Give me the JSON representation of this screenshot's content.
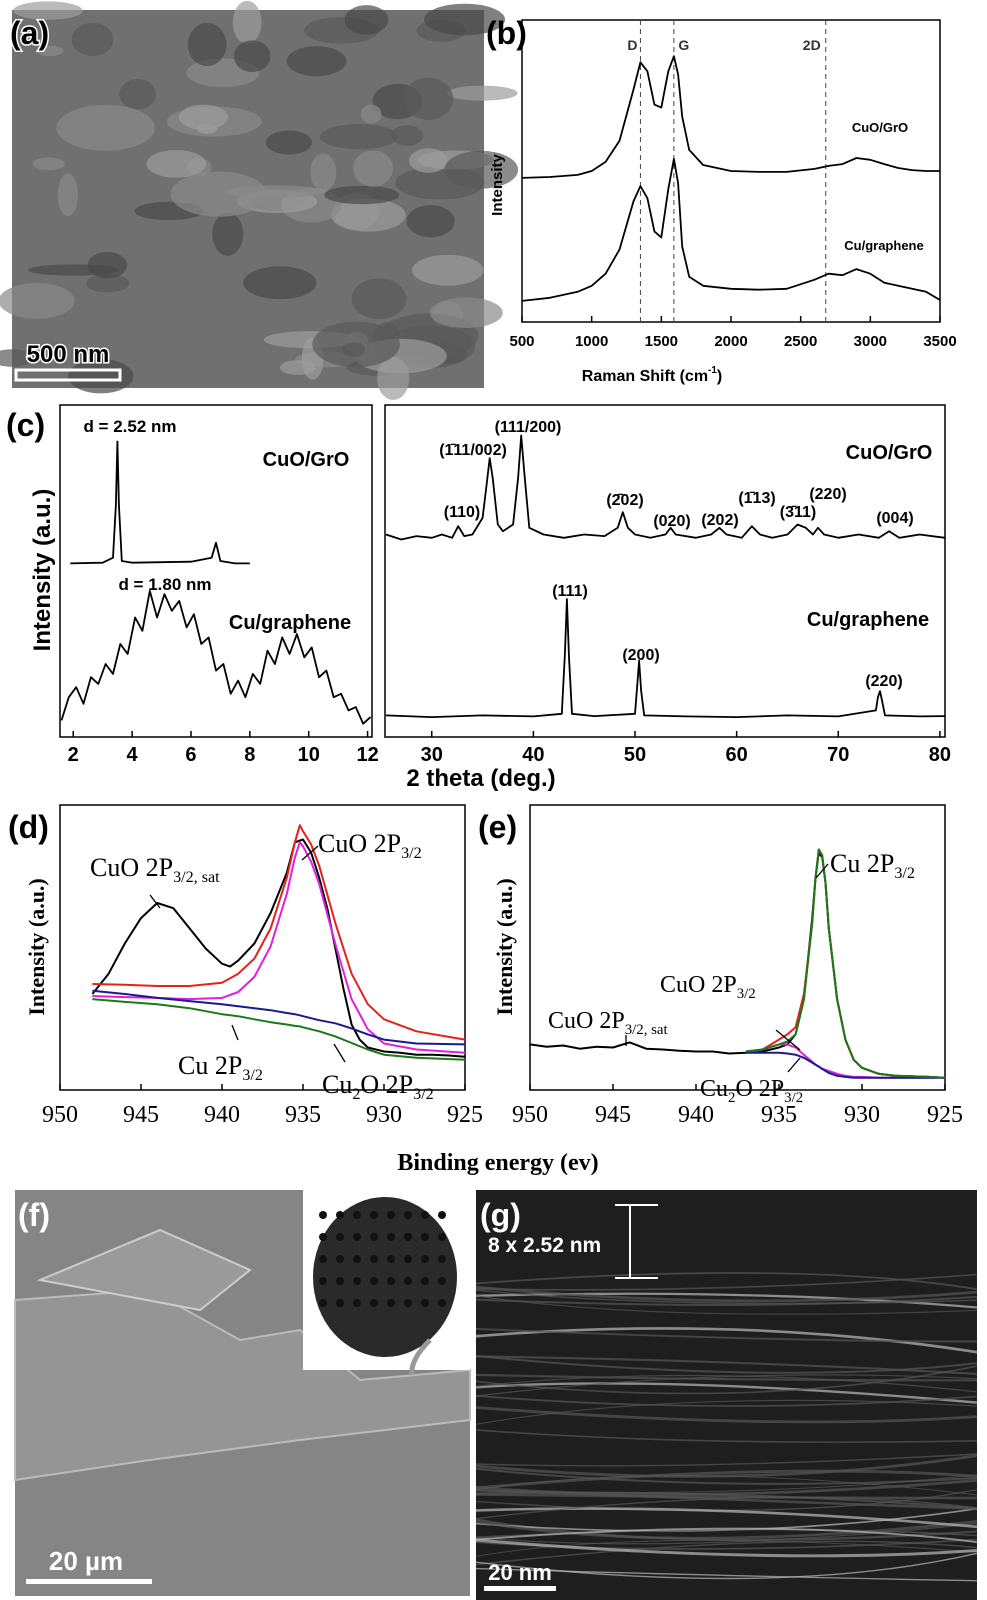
{
  "panels": {
    "a": {
      "label": "(a)",
      "scale_bar": "500 nm"
    },
    "b": {
      "label": "(b)"
    },
    "c": {
      "label": "(c)",
      "x_label": "2 theta (deg.)",
      "y_label": "Intensity (a.u.)"
    },
    "d": {
      "label": "(d)"
    },
    "e": {
      "label": "(e)"
    },
    "de": {
      "x_label": "Binding energy (ev)"
    },
    "f": {
      "label": "(f)",
      "scale_bar": "20 µm"
    },
    "g": {
      "label": "(g)",
      "scale_bar": "20 nm",
      "spacing": "8 x 2.52 nm"
    }
  },
  "chart_data": [
    {
      "type": "line",
      "xlabel": [
        "Raman Shift (cm",
        "-1",
        ")"
      ],
      "ylabel": "Intensity",
      "xlim": [
        500,
        3500
      ],
      "ylim": [
        0,
        100
      ],
      "xticks": [
        500,
        1000,
        1500,
        2000,
        2500,
        3000,
        3500
      ],
      "markers": [
        {
          "label": "D",
          "x": 1350
        },
        {
          "label": "G",
          "x": 1590
        },
        {
          "label": "2D",
          "x": 2680
        }
      ],
      "series": [
        {
          "name": "CuO/GrO",
          "color": "#000000",
          "x": [
            500,
            700,
            900,
            1000,
            1100,
            1200,
            1300,
            1350,
            1400,
            1450,
            1500,
            1550,
            1590,
            1620,
            1650,
            1700,
            1800,
            2000,
            2200,
            2400,
            2600,
            2700,
            2800,
            2900,
            3000,
            3100,
            3200,
            3300,
            3400,
            3500
          ],
          "values": [
            47.7,
            48,
            48.7,
            50,
            53,
            60,
            77,
            86,
            83,
            72,
            71,
            83,
            88,
            82,
            68,
            57,
            52,
            50,
            49.7,
            49.7,
            50.7,
            51.7,
            52.3,
            54.3,
            53.7,
            52.3,
            51,
            50.3,
            50,
            50
          ]
        },
        {
          "name": "Cu/graphene",
          "color": "#000000",
          "x": [
            500,
            700,
            900,
            1000,
            1100,
            1200,
            1300,
            1350,
            1400,
            1450,
            1500,
            1550,
            1590,
            1620,
            1650,
            1700,
            1800,
            2000,
            2200,
            2400,
            2600,
            2700,
            2800,
            2900,
            3000,
            3100,
            3200,
            3300,
            3400,
            3500
          ],
          "values": [
            7,
            8,
            10,
            12,
            16,
            24,
            40,
            45,
            41,
            30,
            28,
            44,
            54,
            46,
            25,
            15,
            12,
            11,
            10.7,
            11,
            14,
            16,
            15.5,
            17.5,
            16,
            13,
            12,
            11,
            10,
            7.3
          ]
        }
      ]
    },
    {
      "type": "line",
      "xlim": [
        1.55,
        12.15
      ],
      "ylim": [
        0,
        100
      ],
      "xticks": [
        2,
        4,
        6,
        8,
        10,
        12
      ],
      "annotations": [
        "d = 2.52 nm",
        "d = 1.80 nm"
      ],
      "series": [
        {
          "name": "CuO/GrO",
          "color": "#000000",
          "x": [
            1.9,
            3.0,
            3.35,
            3.45,
            3.5,
            3.55,
            3.65,
            4,
            6,
            6.7,
            6.85,
            7,
            7.5,
            8
          ],
          "values": [
            52.3,
            52.5,
            54,
            70,
            89,
            70,
            53,
            52.5,
            52.8,
            54,
            58.5,
            53,
            52.3,
            52.3
          ]
        },
        {
          "name": "Cu/graphene",
          "color": "#000000",
          "x": [
            1.6,
            1.85,
            2.1,
            2.35,
            2.6,
            2.85,
            3.1,
            3.35,
            3.6,
            3.85,
            4.1,
            4.35,
            4.6,
            4.85,
            5.1,
            5.35,
            5.6,
            5.85,
            6.1,
            6.35,
            6.6,
            6.85,
            7.1,
            7.35,
            7.6,
            7.85,
            8.1,
            8.35,
            8.6,
            8.85,
            9.1,
            9.35,
            9.6,
            9.85,
            10.1,
            10.35,
            10.6,
            10.85,
            11.1,
            11.35,
            11.6,
            11.85,
            12.1
          ],
          "values": [
            5,
            12,
            15,
            10,
            18,
            16,
            22,
            19,
            28,
            25,
            36,
            32,
            44,
            36,
            43,
            38,
            41,
            33,
            37,
            28,
            30,
            20,
            22,
            13,
            17,
            12,
            19,
            16,
            26,
            22,
            30,
            25,
            31,
            24,
            27,
            18,
            20,
            12,
            13,
            8,
            9,
            4,
            6
          ]
        }
      ]
    },
    {
      "type": "line",
      "xlim": [
        25.4,
        80.5
      ],
      "ylim": [
        0,
        100
      ],
      "xticks": [
        30,
        40,
        50,
        60,
        70,
        80
      ],
      "annotations": [
        "(110)",
        "(1̄11/002)",
        "(111/200)",
        "(2̄02)",
        "(020)",
        "(202)",
        "(1̄13)",
        "(3̄11)",
        "(220)",
        "(004)",
        "(111)",
        "(200)",
        "(220)"
      ],
      "series": [
        {
          "name": "CuO/GrO",
          "color": "#000000",
          "x": [
            25.5,
            27,
            28.5,
            30,
            31,
            32,
            32.6,
            33.2,
            34,
            35,
            35.4,
            35.7,
            36,
            36.5,
            37,
            38,
            38.5,
            38.8,
            39.1,
            39.6,
            41,
            43,
            45,
            47,
            48.3,
            48.8,
            49.3,
            50,
            51.5,
            53,
            53.5,
            54,
            56,
            57.5,
            58.3,
            59,
            60.5,
            61.5,
            62.3,
            63.5,
            65,
            66,
            66.8,
            67.5,
            68,
            68.6,
            70,
            72,
            74,
            75,
            76,
            78,
            80.5
          ],
          "values": [
            61,
            59.5,
            60.5,
            60,
            61,
            60,
            63.5,
            60.5,
            61,
            66,
            76,
            84,
            78,
            64,
            62,
            64,
            78,
            90.8,
            80,
            63,
            61,
            60,
            61,
            60.5,
            63,
            67.7,
            63,
            61,
            60,
            61,
            63,
            61,
            60,
            61,
            63,
            61,
            60,
            63.5,
            61,
            60,
            61,
            64,
            63,
            61,
            63,
            61,
            60,
            61,
            60,
            62,
            60,
            61,
            60
          ]
        },
        {
          "name": "Cu/graphene",
          "color": "#000000",
          "x": [
            25.5,
            30,
            35,
            40,
            42.8,
            43.1,
            43.3,
            43.5,
            43.8,
            46,
            50,
            50.2,
            50.4,
            50.6,
            50.9,
            55,
            60,
            65,
            70,
            73.7,
            73.9,
            74.1,
            74.3,
            74.6,
            78,
            80.5
          ],
          "values": [
            6.5,
            6,
            6.5,
            6.2,
            7,
            25,
            41.5,
            24,
            7,
            6.3,
            7,
            15,
            23,
            14,
            6.5,
            6.2,
            6,
            6.5,
            6.2,
            8,
            12,
            13.8,
            11,
            6.5,
            6.2,
            6.3
          ]
        }
      ]
    },
    {
      "type": "line",
      "ylabel": "Intensity (a.u.)",
      "xlim": [
        950,
        925
      ],
      "ylim": [
        0,
        100
      ],
      "xticks": [
        950,
        945,
        940,
        935,
        930,
        925
      ],
      "annotations": [
        [
          "CuO 2P",
          "3/2, sat"
        ],
        [
          "CuO 2P",
          "3/2"
        ],
        [
          "Cu 2P",
          "3/2"
        ],
        [
          "Cu",
          "2",
          "O 2P",
          "3/2"
        ]
      ],
      "series": [
        {
          "color": "#000000",
          "x": [
            948,
            947,
            946,
            945,
            944,
            943,
            942,
            941,
            940,
            939.5,
            939,
            938,
            937,
            936,
            935.5,
            935,
            934.5,
            934,
            933.5,
            933,
            932.5,
            932,
            931.5,
            931,
            930,
            929,
            928,
            927,
            926,
            925
          ],
          "values": [
            33.7,
            40.8,
            51.4,
            60.3,
            65.6,
            63.8,
            56.7,
            49.6,
            44.3,
            43.3,
            45.4,
            51.4,
            62.1,
            76.2,
            86.9,
            87.9,
            83.3,
            74.5,
            63.8,
            49.6,
            35.5,
            23.0,
            17.7,
            14.9,
            13.5,
            13.1,
            12.4,
            12.4,
            12.1,
            11.7
          ]
        },
        {
          "color": "#e8201a",
          "x": [
            948,
            946,
            944,
            942,
            940,
            939,
            938,
            937,
            936,
            935.5,
            935.2,
            935,
            934.5,
            934,
            933,
            932,
            931,
            930,
            928,
            925
          ],
          "values": [
            37.2,
            36.9,
            36.5,
            36.5,
            37.6,
            40.8,
            46.1,
            56.7,
            74.5,
            86.9,
            92.9,
            90.8,
            86.2,
            78.7,
            58.5,
            40.8,
            30.1,
            24.8,
            20.6,
            17.7
          ]
        },
        {
          "color": "#e020e0",
          "x": [
            948,
            946,
            944,
            942,
            940,
            939,
            938,
            937,
            936,
            935.5,
            935.2,
            935,
            934.5,
            934,
            933,
            932,
            931,
            930,
            928,
            925
          ],
          "values": [
            33.0,
            32.6,
            32.3,
            31.9,
            32.3,
            34.4,
            39.7,
            50.4,
            68.8,
            81.6,
            86.9,
            85.5,
            80.1,
            72.3,
            51.1,
            31.9,
            21.3,
            16.3,
            14.2,
            13.1
          ]
        },
        {
          "color": "#1a1a8c",
          "x": [
            948,
            946,
            944,
            942,
            940,
            939,
            938,
            937,
            936,
            935.5,
            935.2,
            935,
            934.5,
            934,
            933,
            932,
            931,
            930,
            928,
            925
          ],
          "values": [
            34.8,
            33.7,
            32.3,
            31.2,
            30.1,
            29.4,
            28.7,
            28.0,
            27.0,
            26.6,
            26.2,
            25.9,
            25.2,
            24.5,
            23.4,
            21.6,
            19.5,
            17.7,
            16.3,
            16.0
          ]
        },
        {
          "color": "#1a7a1a",
          "x": [
            948,
            946,
            944,
            942,
            940,
            939,
            938,
            937,
            936,
            935.5,
            935.2,
            935,
            934.5,
            934,
            933,
            932,
            931,
            930,
            928,
            925
          ],
          "values": [
            31.9,
            30.9,
            30.1,
            28.7,
            26.6,
            25.9,
            24.8,
            23.8,
            23.0,
            22.5,
            22.3,
            22.0,
            21.3,
            20.6,
            18.8,
            16.5,
            14.2,
            12.4,
            11.3,
            10.6
          ]
        }
      ]
    },
    {
      "type": "line",
      "ylabel": "Intensity (a.u.)",
      "xlim": [
        950,
        925
      ],
      "ylim": [
        0,
        100
      ],
      "xticks": [
        950,
        945,
        940,
        935,
        930,
        925
      ],
      "annotations": [
        [
          "Cu 2P",
          "3/2"
        ],
        [
          "CuO 2P",
          "3/2"
        ],
        [
          "CuO 2P",
          "3/2, sat"
        ],
        [
          "Cu",
          "2",
          "O 2P",
          "3/2"
        ]
      ],
      "series": [
        {
          "color": "#000000",
          "x": [
            950,
            949,
            948,
            947,
            946,
            945,
            944,
            943,
            942,
            941,
            940,
            939,
            938,
            937,
            936,
            935,
            934.5,
            934,
            933.5,
            933,
            932.8,
            932.6,
            932.4,
            932.2,
            932,
            931.5,
            931,
            930.5,
            930,
            929,
            928,
            926,
            925
          ],
          "values": [
            16.0,
            15.2,
            15.6,
            14.5,
            15.2,
            14.9,
            16.7,
            14.5,
            14.2,
            13.8,
            13.5,
            13.5,
            12.8,
            13.1,
            13.5,
            14.9,
            16.0,
            19.5,
            31.9,
            60.3,
            74.5,
            83.3,
            81.6,
            72.7,
            56.7,
            31.9,
            17.7,
            10.6,
            7.8,
            5.7,
            5.0,
            4.6,
            4.3
          ]
        },
        {
          "color": "#e8201a",
          "x": [
            937,
            936,
            935,
            934.5,
            934,
            933.5,
            933,
            932.8,
            932.6,
            932.4,
            932.2,
            932,
            931.5,
            931,
            930.5,
            930,
            929,
            928,
            926,
            925
          ],
          "values": [
            13.5,
            14.2,
            17.7,
            19.5,
            22.0,
            33.7,
            58.5,
            74.5,
            84.4,
            82.3,
            72.7,
            56.7,
            31.9,
            17.7,
            10.6,
            7.8,
            5.7,
            5.0,
            4.6,
            4.3
          ]
        },
        {
          "color": "#e020e0",
          "x": [
            937,
            936,
            935,
            934.5,
            934,
            933.5,
            933,
            932.8,
            932.6,
            932.4,
            932.2,
            932,
            931.5,
            931,
            930.5,
            930,
            929,
            928,
            926,
            925
          ],
          "values": [
            13.1,
            14.2,
            16.0,
            16.0,
            14.9,
            12.4,
            9.9,
            8.9,
            8.2,
            7.4,
            7.1,
            6.7,
            5.7,
            5.0,
            4.6,
            4.6,
            4.3,
            4.3,
            4.3,
            4.3
          ]
        },
        {
          "color": "#1a1a8c",
          "x": [
            937,
            936,
            935,
            934.5,
            934,
            933.5,
            933,
            932.8,
            932.6,
            932.4,
            932.2,
            932,
            931.5,
            931,
            930.5,
            930,
            929,
            928,
            926,
            925
          ],
          "values": [
            13.1,
            13.1,
            13.1,
            12.8,
            12.4,
            11.3,
            9.6,
            8.9,
            8.2,
            7.4,
            6.7,
            6.0,
            5.0,
            4.6,
            4.3,
            4.3,
            4.3,
            4.3,
            4.3,
            4.3
          ]
        },
        {
          "color": "#1a7a1a",
          "x": [
            937,
            936,
            935,
            934.5,
            934,
            933.5,
            933,
            932.8,
            932.6,
            932.4,
            932.2,
            932,
            931.5,
            931,
            930.5,
            930,
            929,
            928,
            926,
            925
          ],
          "values": [
            13.5,
            14.2,
            16.0,
            17.0,
            19.5,
            31.9,
            58.5,
            74.5,
            84.4,
            82.3,
            72.7,
            56.7,
            31.9,
            17.7,
            10.6,
            7.8,
            5.7,
            5.0,
            4.6,
            4.3
          ]
        }
      ]
    }
  ]
}
